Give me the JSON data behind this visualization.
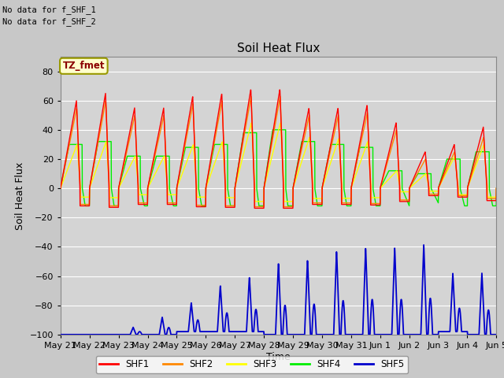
{
  "title": "Soil Heat Flux",
  "ylabel": "Soil Heat Flux",
  "xlabel": "Time",
  "text_no_data": [
    "No data for f_SHF_1",
    "No data for f_SHF_2"
  ],
  "tz_label": "TZ_fmet",
  "ylim": [
    -100,
    90
  ],
  "yticks": [
    -100,
    -80,
    -60,
    -40,
    -20,
    0,
    20,
    40,
    60,
    80
  ],
  "colors": {
    "SHF1": "#ff0000",
    "SHF2": "#ff8800",
    "SHF3": "#ffff00",
    "SHF4": "#00ee00",
    "SHF5": "#0000cc"
  },
  "fig_facecolor": "#c8c8c8",
  "ax_facecolor": "#d4d4d4",
  "grid_color": "#ffffff",
  "legend_entries": [
    "SHF1",
    "SHF2",
    "SHF3",
    "SHF4",
    "SHF5"
  ],
  "x_tick_labels": [
    "May 21",
    "May 22",
    "May 23",
    "May 24",
    "May 25",
    "May 26",
    "May 27",
    "May 28",
    "May 29",
    "May 30",
    "May 31",
    "Jun 1",
    "Jun 2",
    "Jun 3",
    "Jun 4",
    "Jun 5"
  ],
  "n_days": 15
}
